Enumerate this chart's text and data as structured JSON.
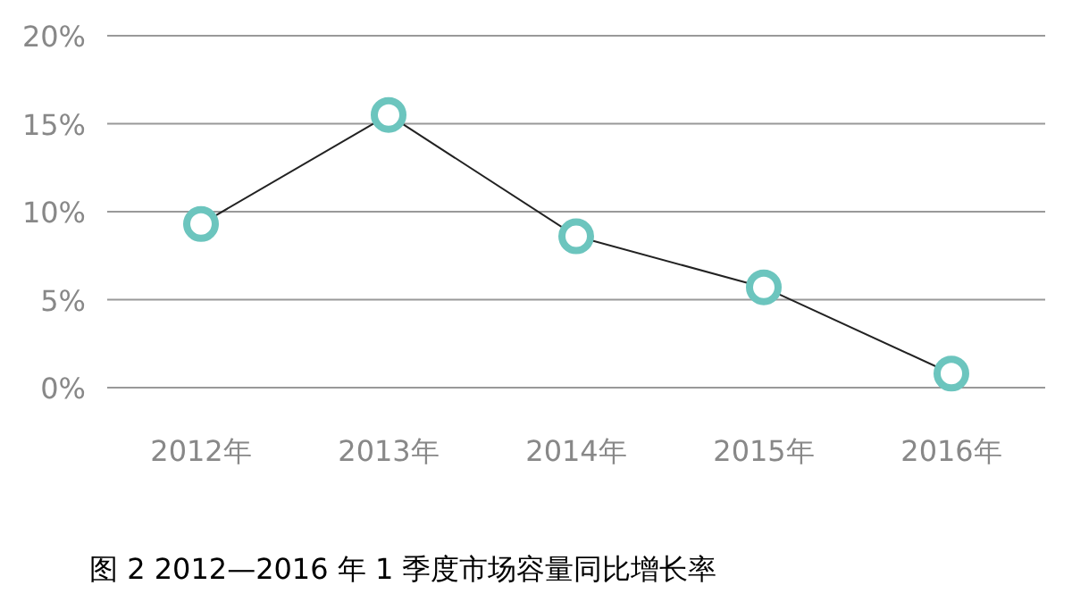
{
  "chart_data": {
    "type": "line",
    "title": "图 2   2012—2016 年 1 季度市场容量同比增长率",
    "categories": [
      "2012年",
      "2013年",
      "2014年",
      "2015年",
      "2016年"
    ],
    "series": [
      {
        "color": "#6cc5be",
        "values": [
          9.3,
          15.5,
          8.6,
          5.7,
          0.8
        ]
      }
    ],
    "ylim": [
      0,
      20
    ],
    "yticks": [
      {
        "value": 0,
        "label": "0%"
      },
      {
        "value": 5,
        "label": "5%"
      },
      {
        "value": 10,
        "label": "10%"
      },
      {
        "value": 15,
        "label": "15%"
      },
      {
        "value": 20,
        "label": "20%"
      }
    ],
    "grid": "y",
    "marker": "circle",
    "line_style": "solid"
  }
}
